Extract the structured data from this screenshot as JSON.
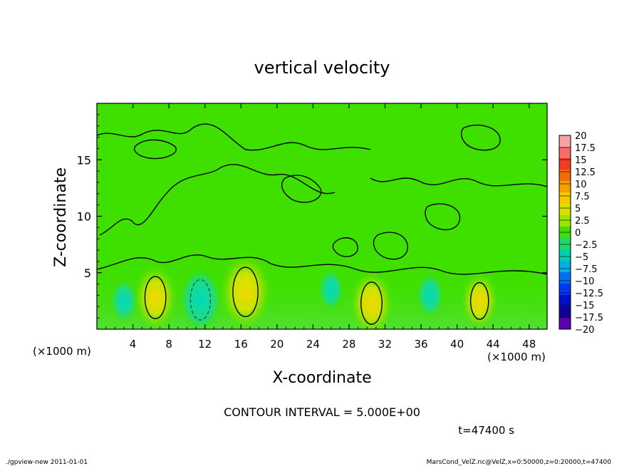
{
  "chart_data": {
    "type": "heatmap",
    "title": "vertical velocity",
    "xlabel": "X-coordinate",
    "ylabel": "Z-coordinate",
    "x_unit_left": "(×1000 m)",
    "x_unit_right": "(×1000 m)",
    "x_ticks": [
      "4",
      "8",
      "12",
      "16",
      "20",
      "24",
      "28",
      "32",
      "36",
      "40",
      "44",
      "48"
    ],
    "x_tick_values": [
      4,
      8,
      12,
      16,
      20,
      24,
      28,
      32,
      36,
      40,
      44,
      48
    ],
    "y_ticks": [
      "5",
      "10",
      "15"
    ],
    "y_tick_values": [
      5,
      10,
      15
    ],
    "xlim": [
      0,
      50
    ],
    "ylim": [
      0,
      20
    ],
    "background_value": 1,
    "colorbar": {
      "labels": [
        "20",
        "17.5",
        "15",
        "12.5",
        "10",
        "7.5",
        "5",
        "2.5",
        "0",
        "−2.5",
        "−5",
        "−7.5",
        "−10",
        "−12.5",
        "−15",
        "−17.5",
        "−20"
      ],
      "colors": [
        "#f7a3a3",
        "#f76c6c",
        "#f53a24",
        "#f56a0a",
        "#f5a000",
        "#f5c800",
        "#d8e000",
        "#9be600",
        "#3fe000",
        "#1ed86a",
        "#00d0b0",
        "#00b0e8",
        "#0070f0",
        "#0038f0",
        "#0010c8",
        "#10009a",
        "#5a00b0"
      ]
    },
    "features": [
      {
        "kind": "updraft",
        "x": 6.5,
        "z": 2.8,
        "w": 6.5
      },
      {
        "kind": "updraft",
        "x": 16.5,
        "z": 3.3,
        "w": 8.5
      },
      {
        "kind": "updraft",
        "x": 30.5,
        "z": 2.3,
        "w": 6.5
      },
      {
        "kind": "updraft",
        "x": 42.5,
        "z": 2.5,
        "w": 5
      },
      {
        "kind": "downdraft",
        "x": 11.5,
        "z": 2.6,
        "w": -6
      },
      {
        "kind": "downdraft",
        "x": 3,
        "z": 2.5,
        "w": -2.5
      },
      {
        "kind": "downdraft",
        "x": 37,
        "z": 3,
        "w": -2.5
      },
      {
        "kind": "downdraft",
        "x": 26,
        "z": 3.5,
        "w": -2
      }
    ],
    "annotations": {
      "contour_interval": "CONTOUR INTERVAL = 5.000E+00",
      "time": "t=47400 s"
    }
  },
  "footer": {
    "left": "./gpview-new   2011-01-01",
    "right": "MarsCond_VelZ.nc@VelZ,x=0:50000,z=0:20000,t=47400"
  }
}
